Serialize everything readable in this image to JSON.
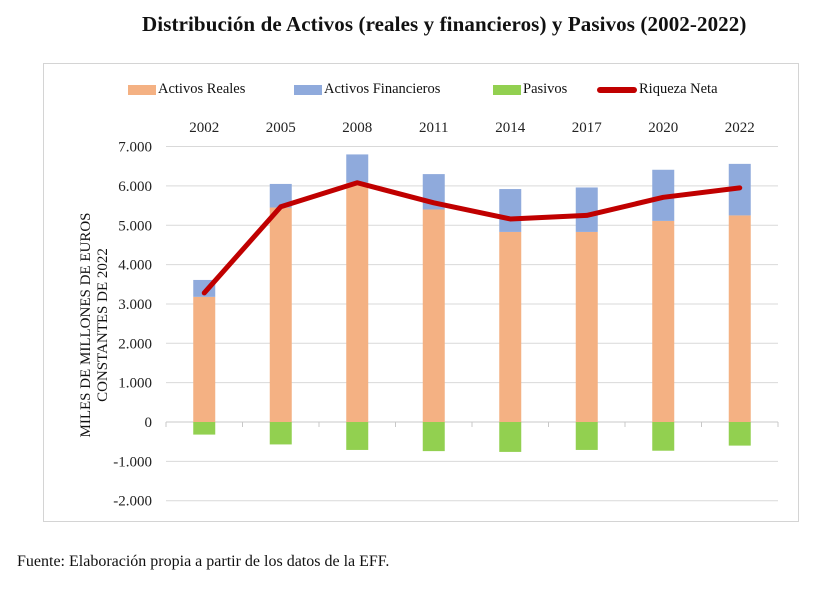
{
  "chart_data": {
    "type": "bar",
    "stacked": true,
    "title": "Distribución de Activos (reales y financieros) y Pasivos (2002-2022)",
    "xlabel": "",
    "ylabel": "MILES DE MILLONES DE EUROS CONSTANTES DE 2022",
    "ylabel_lines": [
      "MILES DE MILLONES DE EUROS",
      "CONSTANTES DE 2022"
    ],
    "categories": [
      "2002",
      "2005",
      "2008",
      "2011",
      "2014",
      "2017",
      "2020",
      "2022"
    ],
    "x_axis_position": "top",
    "ylim": [
      -2000,
      7000
    ],
    "yticks": [
      7000,
      6000,
      5000,
      4000,
      3000,
      2000,
      1000,
      0,
      -1000,
      -2000
    ],
    "ytick_labels": [
      "7.000",
      "6.000",
      "5.000",
      "4.000",
      "3.000",
      "2.000",
      "1.000",
      "0",
      "-1.000",
      "-2.000"
    ],
    "grid": true,
    "legend_position": "top",
    "series": [
      {
        "name": "Activos Reales",
        "kind": "bar",
        "color": "#F4B183",
        "values": [
          3180,
          5450,
          6080,
          5400,
          4830,
          4830,
          5110,
          5250
        ]
      },
      {
        "name": "Activos Financieros",
        "kind": "bar",
        "color": "#8FAADC",
        "values": [
          430,
          600,
          720,
          900,
          1090,
          1130,
          1300,
          1310
        ]
      },
      {
        "name": "Pasivos",
        "kind": "bar",
        "color": "#92D050",
        "values": [
          -320,
          -570,
          -710,
          -740,
          -760,
          -710,
          -730,
          -600
        ]
      },
      {
        "name": "Riqueza Neta",
        "kind": "line",
        "color": "#C00000",
        "values": [
          3280,
          5470,
          6080,
          5570,
          5160,
          5250,
          5710,
          5950
        ]
      }
    ]
  },
  "footer": "Fuente: Elaboración propia a partir de los datos de la EFF."
}
